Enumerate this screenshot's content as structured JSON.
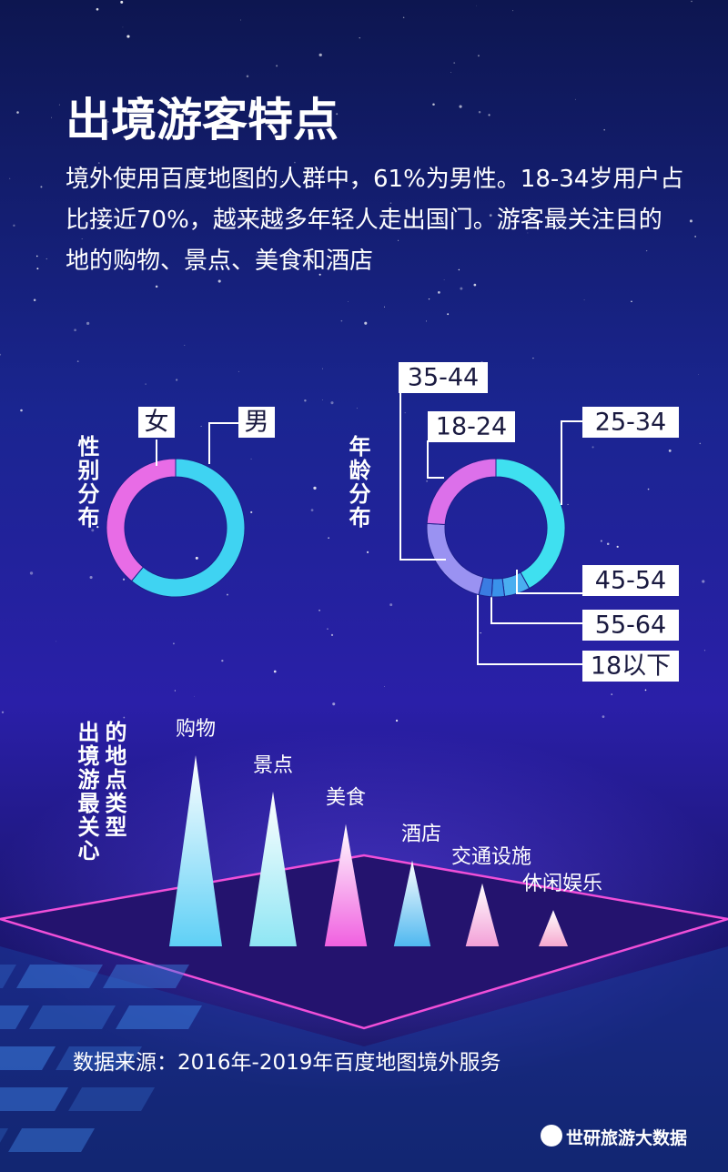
{
  "header": {
    "title": "出境游客特点",
    "description": "境外使用百度地图的人群中，61%为男性。18-34岁用户占比接近70%，越来越多年轻人走出国门。游客最关注目的地的购物、景点、美食和酒店"
  },
  "chart_data": [
    {
      "type": "pie",
      "title": "性别分布",
      "categories": [
        "男",
        "女"
      ],
      "values": [
        61,
        39
      ],
      "colors": [
        "#3fd3f2",
        "#e86ce6"
      ],
      "donut": true
    },
    {
      "type": "pie",
      "title": "年龄分布",
      "categories": [
        "25-34",
        "45-54",
        "55-64",
        "18以下",
        "35-44",
        "18-24"
      ],
      "values": [
        42,
        6,
        3,
        3,
        22,
        24
      ],
      "colors": [
        "#3fe0f0",
        "#4aaef0",
        "#3a92ea",
        "#3a7ce2",
        "#9a92f2",
        "#dc70ea"
      ],
      "donut": true
    },
    {
      "type": "cone",
      "title": "出境游最关心的地点类型",
      "categories": [
        "购物",
        "景点",
        "美食",
        "酒店",
        "交通设施",
        "休闲娱乐"
      ],
      "values": [
        100,
        81,
        64,
        45,
        33,
        19
      ],
      "colors": [
        "#5fd0f6",
        "#8fe6f4",
        "#f060e0",
        "#4fb8f0",
        "#f3a0d8",
        "#f6a8cf"
      ]
    }
  ],
  "footer": {
    "source": "数据来源：2016年-2019年百度地图境外服务",
    "watermark": "世研旅游大数据"
  }
}
